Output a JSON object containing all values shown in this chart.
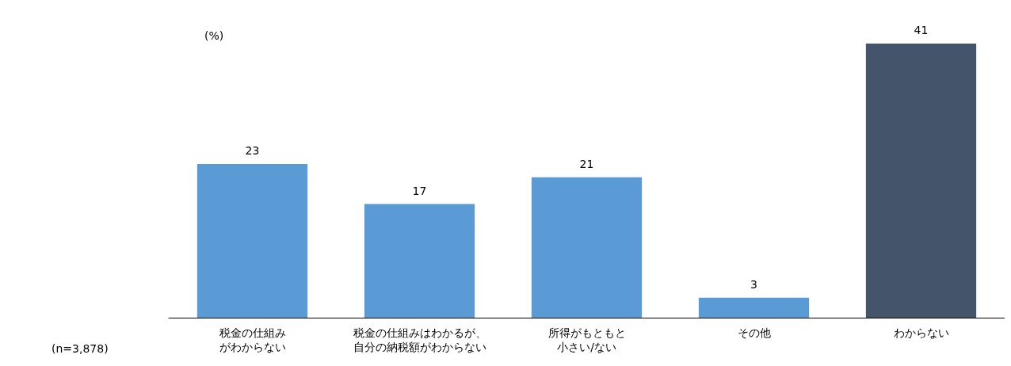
{
  "chart_data": {
    "type": "bar",
    "ylabel": "(%)",
    "categories": [
      "税金の仕組みがわからない",
      "税金の仕組みはわかるが、自分の納税額がわからない",
      "所得がもともと小さい/ない",
      "その他",
      "わからない"
    ],
    "values": [
      23,
      17,
      21,
      3,
      41
    ],
    "colors": [
      "#5b9bd5",
      "#5b9bd5",
      "#5b9bd5",
      "#5b9bd5",
      "#44546a"
    ],
    "data_labels": true,
    "grid": false,
    "annotations": [
      "(n=3,878)"
    ]
  }
}
